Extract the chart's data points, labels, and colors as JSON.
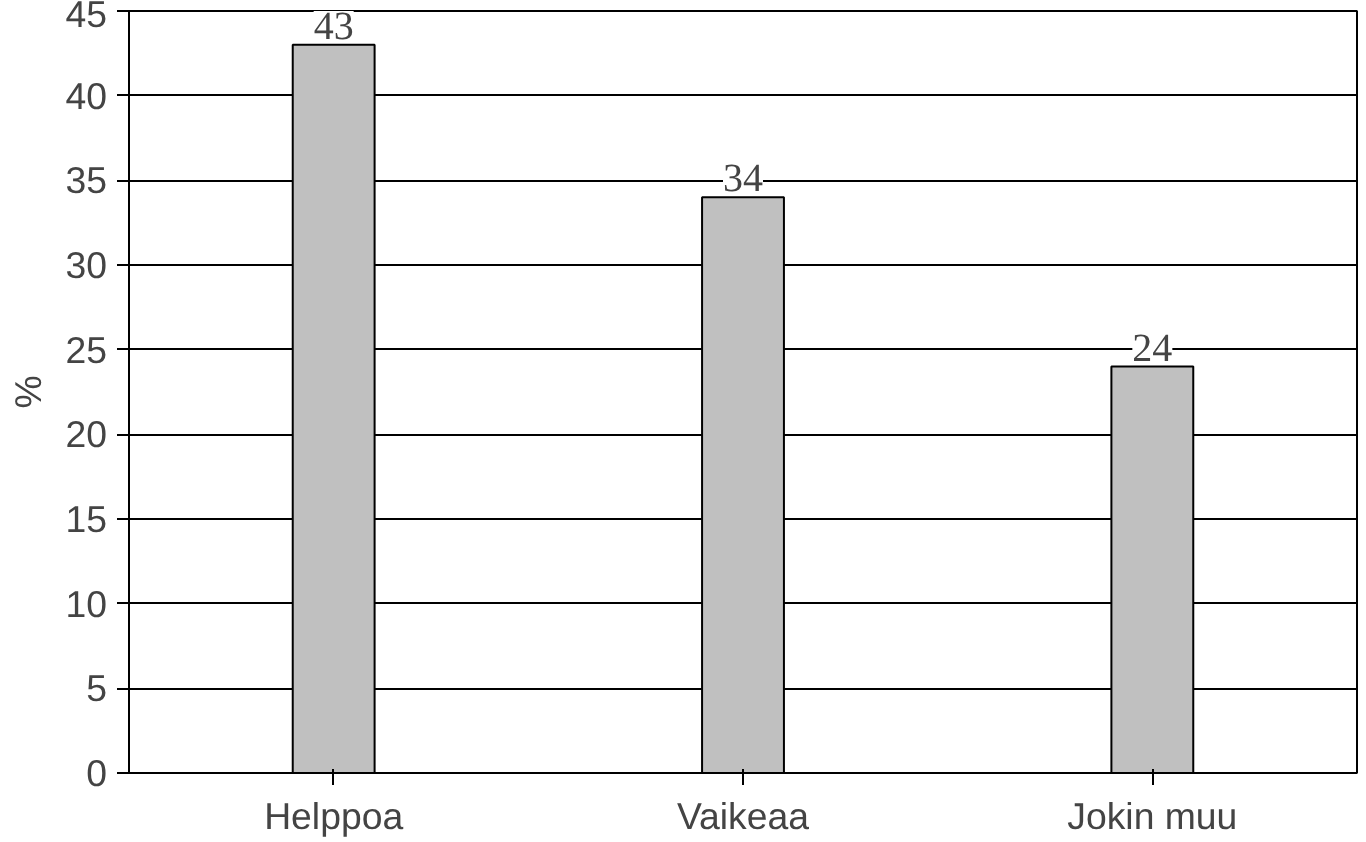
{
  "chart_data": {
    "type": "bar",
    "ylabel": "%",
    "categories": [
      "Helppoa",
      "Vaikeaa",
      "Jokin muu"
    ],
    "values": [
      43,
      34,
      24
    ],
    "color": "#c0c0c0",
    "ylim": [
      0,
      45
    ],
    "yticks": [
      0,
      5,
      10,
      15,
      20,
      25,
      30,
      35,
      40,
      45
    ],
    "grid": "y",
    "data_labels": true
  }
}
